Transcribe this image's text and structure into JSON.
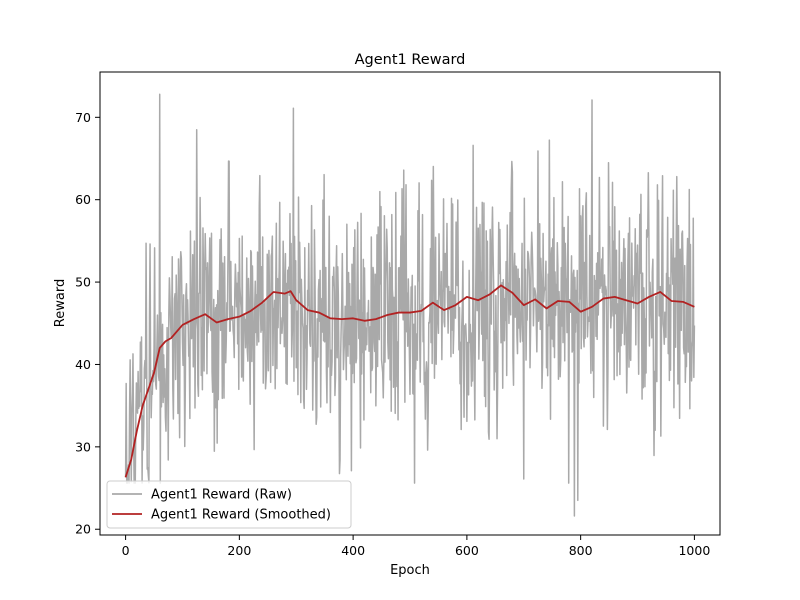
{
  "chart_data": {
    "type": "line",
    "title": "Agent1 Reward",
    "xlabel": "Epoch",
    "ylabel": "Reward",
    "xlim": [
      -45,
      1045
    ],
    "ylim": [
      19.3,
      75.5
    ],
    "x_ticks": [
      0,
      200,
      400,
      600,
      800,
      1000
    ],
    "y_ticks": [
      20,
      30,
      40,
      50,
      60,
      70
    ],
    "grid": false,
    "legend_position": "lower left",
    "series": [
      {
        "name": "Agent1 Reward (Raw)",
        "color": "#a9a9a9",
        "x_range": [
          0,
          1000
        ],
        "points": 1001,
        "seed": 11,
        "mean_anchors": [
          [
            0,
            26
          ],
          [
            10,
            33
          ],
          [
            30,
            36
          ],
          [
            60,
            42
          ],
          [
            100,
            44
          ],
          [
            150,
            45.5
          ],
          [
            200,
            45.3
          ],
          [
            250,
            47.5
          ],
          [
            290,
            48.5
          ],
          [
            340,
            46.5
          ],
          [
            380,
            45.5
          ],
          [
            420,
            45.5
          ],
          [
            470,
            46
          ],
          [
            520,
            46.5
          ],
          [
            570,
            47.5
          ],
          [
            620,
            47.5
          ],
          [
            670,
            49.5
          ],
          [
            720,
            47.5
          ],
          [
            760,
            47
          ],
          [
            800,
            46.5
          ],
          [
            850,
            47.5
          ],
          [
            900,
            47.5
          ],
          [
            940,
            48.5
          ],
          [
            1000,
            47
          ]
        ],
        "noise_sd": 7.5,
        "peaks": [
          [
            60,
            72.8
          ],
          [
            295,
            71.1
          ],
          [
            820,
            72.1
          ],
          [
            789,
            21.6
          ],
          [
            795,
            23.5
          ],
          [
            700,
            26.1
          ],
          [
            397,
            27.1
          ],
          [
            0,
            26.3
          ],
          [
            5,
            27.8
          ]
        ],
        "min": 21.6,
        "max": 72.8
      },
      {
        "name": "Agent1 Reward (Smoothed)",
        "color": "#b22222",
        "x": [
          0,
          10,
          20,
          30,
          40,
          50,
          60,
          70,
          80,
          100,
          120,
          140,
          160,
          180,
          200,
          220,
          240,
          260,
          280,
          290,
          300,
          320,
          340,
          360,
          380,
          400,
          420,
          440,
          460,
          480,
          500,
          520,
          540,
          560,
          580,
          600,
          620,
          640,
          660,
          680,
          700,
          720,
          740,
          760,
          780,
          800,
          820,
          840,
          860,
          880,
          900,
          920,
          940,
          960,
          980,
          1000
        ],
        "y": [
          26.3,
          28.5,
          32,
          35,
          37,
          39,
          42,
          42.8,
          43.2,
          44.8,
          45.5,
          46.1,
          45.1,
          45.5,
          45.8,
          46.5,
          47.5,
          48.8,
          48.6,
          48.9,
          47.8,
          46.6,
          46.3,
          45.6,
          45.5,
          45.6,
          45.3,
          45.5,
          46,
          46.3,
          46.3,
          46.5,
          47.5,
          46.6,
          47.2,
          48.2,
          47.8,
          48.5,
          49.6,
          48.7,
          47.2,
          47.9,
          46.8,
          47.7,
          47.6,
          46.4,
          47,
          48,
          48.2,
          47.8,
          47.4,
          48.2,
          48.8,
          47.7,
          47.6,
          47
        ]
      }
    ]
  }
}
